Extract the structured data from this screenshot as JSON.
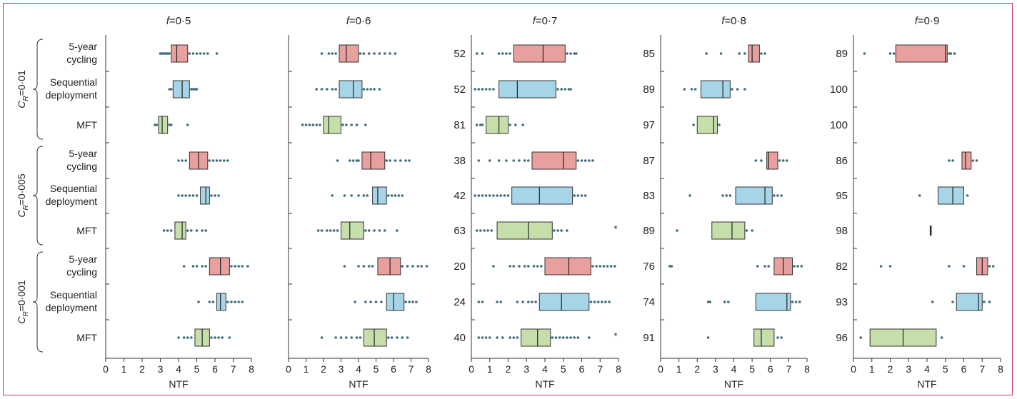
{
  "chart_data": {
    "type": "boxplot",
    "xlabel": "NTF",
    "x_ticks": [
      "0",
      "1",
      "2",
      "3",
      "4",
      "5",
      "6",
      "7",
      "8"
    ],
    "xlim": [
      0,
      8
    ],
    "box_colors": {
      "5-year cycling": "#e8a09f",
      "Sequential deployment": "#a6d5e8",
      "MFT": "#c6dfaa"
    },
    "point_color": "#3e6e7a",
    "group_labels": [
      {
        "symbol": "C",
        "subscript": "R",
        "value": "=0·01"
      },
      {
        "symbol": "C",
        "subscript": "R",
        "value": "=0·005"
      },
      {
        "symbol": "C",
        "subscript": "R",
        "value": "=0·001"
      }
    ],
    "row_labels": [
      {
        "strategy": "5-year cycling",
        "lines": [
          "5-year",
          "cycling"
        ]
      },
      {
        "strategy": "Sequential deployment",
        "lines": [
          "Sequential",
          "deployment"
        ]
      },
      {
        "strategy": "MFT",
        "lines": [
          "MFT"
        ]
      },
      {
        "strategy": "5-year cycling",
        "lines": [
          "5-year",
          "cycling"
        ]
      },
      {
        "strategy": "Sequential deployment",
        "lines": [
          "Sequential",
          "deployment"
        ]
      },
      {
        "strategy": "MFT",
        "lines": [
          "MFT"
        ]
      },
      {
        "strategy": "5-year cycling",
        "lines": [
          "5-year",
          "cycling"
        ]
      },
      {
        "strategy": "Sequential deployment",
        "lines": [
          "Sequential",
          "deployment"
        ]
      },
      {
        "strategy": "MFT",
        "lines": [
          "MFT"
        ]
      }
    ],
    "panels": [
      {
        "title_var": "f",
        "title_value": "=0·5",
        "counts": [
          "",
          "",
          "",
          "",
          "",
          "",
          "",
          "",
          ""
        ],
        "stars": [],
        "rows": [
          {
            "box": [
              3.6,
              3.9,
              4.5
            ],
            "points": [
              3.0,
              3.1,
              3.2,
              3.3,
              3.4,
              3.5,
              4.6,
              4.8,
              5.0,
              5.2,
              5.4,
              5.6,
              6.1
            ]
          },
          {
            "box": [
              3.7,
              4.2,
              4.6
            ],
            "points": [
              3.5,
              3.6,
              4.7,
              4.8,
              4.9,
              5.0
            ]
          },
          {
            "box": [
              2.9,
              3.1,
              3.4
            ],
            "points": [
              2.7,
              2.8,
              3.5,
              3.6,
              4.5
            ]
          },
          {
            "box": [
              4.6,
              5.1,
              5.6
            ],
            "points": [
              4.0,
              4.2,
              4.4,
              5.7,
              5.9,
              6.1,
              6.3,
              6.5,
              6.7
            ]
          },
          {
            "box": [
              5.2,
              5.5,
              5.7
            ],
            "points": [
              4.0,
              4.2,
              4.4,
              4.6,
              4.8,
              5.0,
              5.8,
              6.0,
              6.2
            ]
          },
          {
            "box": [
              3.8,
              4.2,
              4.4
            ],
            "points": [
              3.2,
              3.4,
              3.6,
              4.5,
              4.7,
              5.0,
              5.3,
              5.5
            ]
          },
          {
            "box": [
              5.7,
              6.3,
              6.8
            ],
            "points": [
              4.3,
              4.8,
              5.0,
              5.3,
              5.5,
              6.9,
              7.1,
              7.3,
              7.5,
              7.8
            ]
          },
          {
            "box": [
              6.1,
              6.3,
              6.6
            ],
            "points": [
              5.1,
              5.7,
              5.9,
              6.7,
              6.9,
              7.1,
              7.3,
              7.5
            ]
          },
          {
            "box": [
              4.9,
              5.3,
              5.7
            ],
            "points": [
              4.0,
              4.3,
              4.5,
              4.7,
              5.8,
              6.0,
              6.2,
              6.4,
              6.8
            ]
          }
        ]
      },
      {
        "title_var": "f",
        "title_value": "=0·6",
        "counts": [
          "",
          "",
          "",
          "",
          "",
          "",
          "",
          "",
          ""
        ],
        "stars": [],
        "rows": [
          {
            "box": [
              2.9,
              3.3,
              4.0
            ],
            "points": [
              1.9,
              2.3,
              2.5,
              2.7,
              4.1,
              4.3,
              4.6,
              4.9,
              5.2,
              5.5,
              5.8,
              6.1
            ]
          },
          {
            "box": [
              2.9,
              3.7,
              4.2
            ],
            "points": [
              1.6,
              1.9,
              2.2,
              2.5,
              2.7,
              4.3,
              4.5,
              4.7,
              4.9,
              5.2
            ]
          },
          {
            "box": [
              2.0,
              2.3,
              3.0
            ],
            "points": [
              0.8,
              1.0,
              1.2,
              1.4,
              1.6,
              1.8,
              3.1,
              3.3,
              3.6,
              3.9,
              4.4
            ]
          },
          {
            "box": [
              4.2,
              4.7,
              5.5
            ],
            "points": [
              2.8,
              3.5,
              3.7,
              3.9,
              4.0,
              5.6,
              5.8,
              6.1,
              6.4,
              6.7,
              6.9
            ]
          },
          {
            "box": [
              4.8,
              5.1,
              5.6
            ],
            "points": [
              2.5,
              3.2,
              3.6,
              4.0,
              4.3,
              4.5,
              5.7,
              5.9,
              6.1,
              6.3,
              6.5
            ]
          },
          {
            "box": [
              3.0,
              3.5,
              4.3
            ],
            "points": [
              1.7,
              1.9,
              2.2,
              2.4,
              2.6,
              2.8,
              4.4,
              4.6,
              4.9,
              5.2,
              5.5,
              6.2
            ]
          },
          {
            "box": [
              5.1,
              5.8,
              6.4
            ],
            "points": [
              3.2,
              4.0,
              4.3,
              4.6,
              4.8,
              6.5,
              6.8,
              7.1,
              7.4,
              7.6,
              7.9
            ]
          },
          {
            "box": [
              5.6,
              6.0,
              6.6
            ],
            "points": [
              3.8,
              4.4,
              4.7,
              5.0,
              5.3,
              6.7,
              6.9,
              7.1,
              7.3
            ]
          },
          {
            "box": [
              4.3,
              4.9,
              5.6
            ],
            "points": [
              1.9,
              2.7,
              3.0,
              3.3,
              3.6,
              3.9,
              4.1,
              5.7,
              5.9,
              6.2,
              6.5,
              6.8
            ]
          }
        ]
      },
      {
        "title_var": "f",
        "title_value": "=0·7",
        "counts": [
          "52",
          "52",
          "81",
          "38",
          "42",
          "63",
          "20",
          "24",
          "40"
        ],
        "stars": [
          5,
          8
        ],
        "rows": [
          {
            "box": [
              2.3,
              3.9,
              5.1
            ],
            "points": [
              0.3,
              0.6,
              1.5,
              1.7,
              1.9,
              2.1,
              5.2,
              5.4,
              5.6,
              5.7
            ]
          },
          {
            "box": [
              1.5,
              2.5,
              4.6
            ],
            "points": [
              0.2,
              0.4,
              0.6,
              0.8,
              1.0,
              1.2,
              4.7,
              4.9,
              5.1,
              5.3,
              5.4
            ]
          },
          {
            "box": [
              0.8,
              1.5,
              2.0
            ],
            "points": [
              0.3,
              0.5,
              0.6,
              2.1,
              2.4,
              2.8
            ]
          },
          {
            "box": [
              3.3,
              5.0,
              5.7
            ],
            "points": [
              0.4,
              1.0,
              1.5,
              1.9,
              2.3,
              2.6,
              2.9,
              3.1,
              5.8,
              6.0,
              6.2,
              6.4,
              6.6
            ]
          },
          {
            "box": [
              2.2,
              3.7,
              5.5
            ],
            "points": [
              0.2,
              0.4,
              0.6,
              0.8,
              1.0,
              1.2,
              1.4,
              1.6,
              1.8,
              2.0,
              5.6,
              5.8,
              6.0,
              6.2
            ]
          },
          {
            "box": [
              1.4,
              3.1,
              4.4
            ],
            "points": [
              0.3,
              0.5,
              0.7,
              0.9,
              1.1,
              4.5,
              4.7,
              4.9,
              5.2
            ]
          },
          {
            "box": [
              4.0,
              5.3,
              6.5
            ],
            "points": [
              1.2,
              2.1,
              2.3,
              2.6,
              2.9,
              3.1,
              3.4,
              3.6,
              3.8,
              6.6,
              6.8,
              7.0,
              7.2,
              7.4,
              7.6,
              7.8
            ]
          },
          {
            "box": [
              3.7,
              4.9,
              6.4
            ],
            "points": [
              0.4,
              0.6,
              1.4,
              1.6,
              2.5,
              2.8,
              3.1,
              3.3,
              3.5,
              6.5,
              6.7,
              6.9,
              7.1,
              7.3,
              7.5
            ]
          },
          {
            "box": [
              2.7,
              3.6,
              4.3
            ],
            "points": [
              0.4,
              0.6,
              0.8,
              1.0,
              1.4,
              1.7,
              2.1,
              2.3,
              2.5,
              4.4,
              4.6,
              4.8,
              5.0,
              5.2,
              5.4,
              5.6,
              5.8,
              6.4
            ]
          }
        ]
      },
      {
        "title_var": "f",
        "title_value": "=0·8",
        "counts": [
          "85",
          "89",
          "97",
          "87",
          "83",
          "89",
          "76",
          "74",
          "91"
        ],
        "stars": [],
        "rows": [
          {
            "box": [
              4.8,
              5.0,
              5.4
            ],
            "points": [
              2.5,
              3.3,
              4.3,
              4.6,
              5.5,
              5.7
            ]
          },
          {
            "box": [
              2.2,
              3.4,
              3.8
            ],
            "points": [
              1.3,
              1.7,
              1.9,
              3.9,
              4.2,
              4.6
            ]
          },
          {
            "box": [
              2.0,
              2.9,
              3.1
            ],
            "points": [
              1.8,
              3.2
            ]
          },
          {
            "box": [
              5.8,
              5.9,
              6.4
            ],
            "points": [
              5.2,
              5.5,
              6.5,
              6.7,
              6.9
            ]
          },
          {
            "box": [
              4.1,
              5.7,
              6.1
            ],
            "points": [
              1.6,
              3.4,
              3.6,
              3.8,
              6.2,
              6.4,
              6.6
            ]
          },
          {
            "box": [
              2.8,
              3.9,
              4.6
            ],
            "points": [
              0.9,
              4.7,
              5.0
            ]
          },
          {
            "box": [
              6.2,
              6.7,
              7.2
            ],
            "points": [
              0.5,
              0.6,
              5.3,
              5.7,
              5.9,
              7.3,
              7.5,
              7.7
            ]
          },
          {
            "box": [
              5.2,
              6.9,
              7.1
            ],
            "points": [
              2.6,
              2.7,
              3.5,
              3.7,
              7.2,
              7.4,
              7.6
            ]
          },
          {
            "box": [
              5.1,
              5.5,
              6.2
            ],
            "points": [
              2.6,
              6.4,
              6.6
            ]
          }
        ]
      },
      {
        "title_var": "f",
        "title_value": "=0·9",
        "counts": [
          "89",
          "100",
          "100",
          "86",
          "95",
          "98",
          "82",
          "93",
          "96"
        ],
        "stars": [],
        "rows": [
          {
            "box": [
              2.3,
              5.0,
              5.1
            ],
            "points": [
              0.6,
              2.0,
              2.2,
              5.2,
              5.3,
              5.5
            ]
          },
          null,
          null,
          {
            "box": [
              5.9,
              6.1,
              6.4
            ],
            "points": [
              5.2,
              5.4,
              6.5,
              6.7
            ]
          },
          {
            "box": [
              4.6,
              5.4,
              6.0
            ],
            "points": [
              3.6,
              6.2
            ]
          },
          {
            "box": [
              4.2,
              4.2,
              4.2
            ],
            "points": []
          },
          {
            "box": [
              6.7,
              7.0,
              7.3
            ],
            "points": [
              1.5,
              2.0,
              5.2,
              6.0,
              7.4,
              7.6
            ]
          },
          {
            "box": [
              5.6,
              6.8,
              7.0
            ],
            "points": [
              4.3,
              5.4,
              7.1,
              7.4
            ]
          },
          {
            "box": [
              0.9,
              2.7,
              4.5
            ],
            "points": [
              0.4,
              4.8
            ]
          }
        ]
      }
    ]
  }
}
